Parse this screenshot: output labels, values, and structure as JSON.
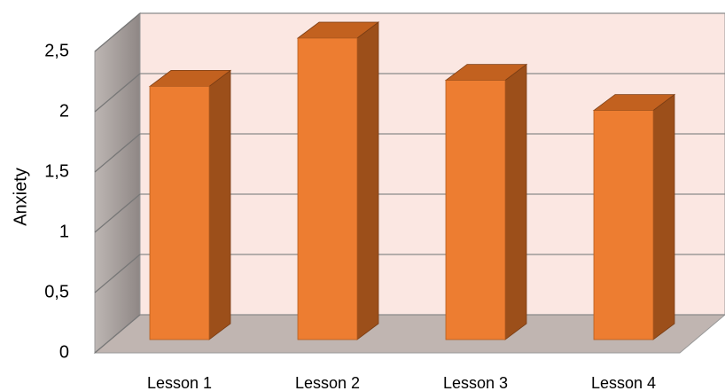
{
  "chart_data": {
    "type": "bar3d",
    "y_label": "Anxiety",
    "categories": [
      "Lesson 1",
      "Lesson 2",
      "Lesson 3",
      "Lesson 4"
    ],
    "values": [
      2.1,
      2.5,
      2.15,
      1.9
    ],
    "color": "#ed7d31",
    "ylim": [
      0,
      2.5
    ],
    "yticks": [
      0,
      {
        "value": 0.5,
        "label": "0,5"
      },
      1,
      {
        "value": 1.5,
        "label": "1,5"
      },
      2,
      {
        "value": 2.5,
        "label": "2,5"
      }
    ],
    "grid": true
  }
}
